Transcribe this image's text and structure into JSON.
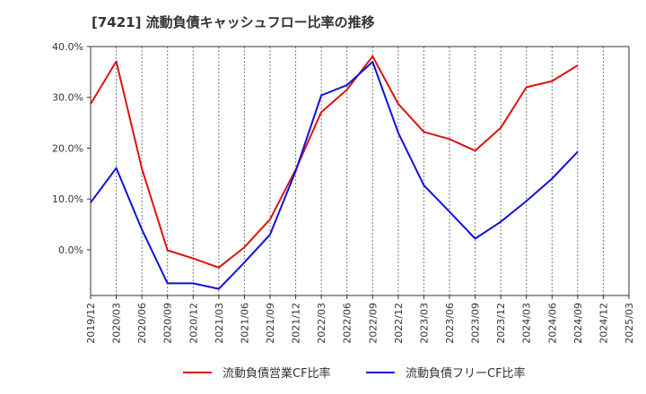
{
  "chart_data": {
    "type": "line",
    "title": "[7421]  流動負債キャッシュフロー比率の推移",
    "xlabel": "",
    "ylabel": "",
    "x": [
      "2019/12",
      "2020/03",
      "2020/06",
      "2020/09",
      "2020/12",
      "2021/03",
      "2021/06",
      "2021/09",
      "2021/12",
      "2022/03",
      "2022/06",
      "2022/09",
      "2022/12",
      "2023/03",
      "2023/06",
      "2023/09",
      "2023/12",
      "2024/03",
      "2024/06",
      "2024/09",
      "2024/12",
      "2025/03"
    ],
    "ylim": [
      -9,
      40
    ],
    "yticks": [
      0,
      10,
      20,
      30,
      40
    ],
    "ytick_labels": [
      "0.0%",
      "10.0%",
      "20.0%",
      "30.0%",
      "40.0%"
    ],
    "grid": "vertical-dotted",
    "legend_position": "bottom",
    "series": [
      {
        "name": "流動負債営業CF比率",
        "color": "#dd1111",
        "values": [
          28.7,
          37.1,
          16.0,
          -0.1,
          -1.7,
          -3.5,
          0.5,
          6.0,
          15.8,
          27.1,
          31.5,
          38.1,
          28.7,
          23.2,
          21.8,
          19.5,
          24.0,
          32.0,
          33.2,
          36.3,
          null,
          null
        ]
      },
      {
        "name": "流動負債フリーCF比率",
        "color": "#1111dd",
        "values": [
          9.3,
          16.1,
          4.0,
          -6.6,
          -6.6,
          -7.7,
          -2.5,
          3.0,
          15.5,
          30.4,
          32.4,
          37.0,
          23.0,
          12.7,
          7.5,
          2.2,
          5.5,
          9.6,
          14.0,
          19.3,
          null,
          null
        ]
      }
    ]
  }
}
